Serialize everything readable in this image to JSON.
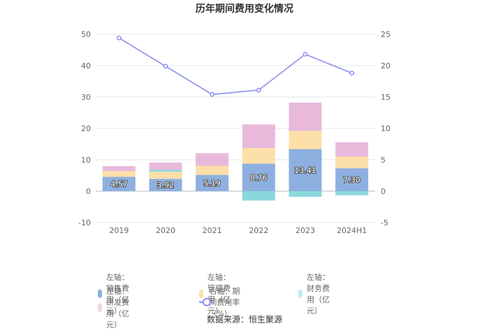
{
  "title": "历年期间费用变化情况",
  "source": "数据来源：恒生聚源",
  "chart_data": {
    "type": "bar",
    "stacked": true,
    "categories": [
      "2019",
      "2020",
      "2021",
      "2022",
      "2023",
      "2024H1"
    ],
    "left_axis": {
      "ylim": [
        -10,
        50
      ],
      "ticks": [
        -10,
        0,
        10,
        20,
        30,
        40,
        50
      ]
    },
    "right_axis": {
      "ylim": [
        -5,
        25
      ],
      "ticks": [
        -5,
        0,
        5,
        10,
        15,
        20,
        25
      ]
    },
    "grid": true,
    "legend_position": "bottom",
    "series": [
      {
        "name": "左轴：销售费用（亿元）",
        "axis": "left",
        "color": "#8eb0e0",
        "values": [
          4.57,
          3.92,
          5.19,
          8.76,
          13.41,
          7.3
        ],
        "show_labels": true
      },
      {
        "name": "左轴：管理费用（亿元）",
        "axis": "left",
        "color": "#fddfa9",
        "values": [
          1.8,
          2.3,
          2.9,
          5.0,
          5.8,
          3.7
        ]
      },
      {
        "name": "左轴：财务费用（亿元）",
        "axis": "left",
        "color": "#8ad8de",
        "values": [
          0.0,
          0.6,
          0.0,
          -3.0,
          -1.8,
          -1.3
        ]
      },
      {
        "name": "左轴：研发费用（亿元）",
        "axis": "left",
        "color": "#e8b9db",
        "values": [
          1.6,
          2.3,
          4.0,
          7.5,
          9.0,
          4.6
        ]
      },
      {
        "name": "右轴：期间费用率（%）",
        "axis": "right",
        "type": "line",
        "color": "#8b8ff0",
        "values": [
          24.4,
          19.9,
          15.4,
          16.1,
          21.8,
          18.8
        ]
      }
    ]
  }
}
